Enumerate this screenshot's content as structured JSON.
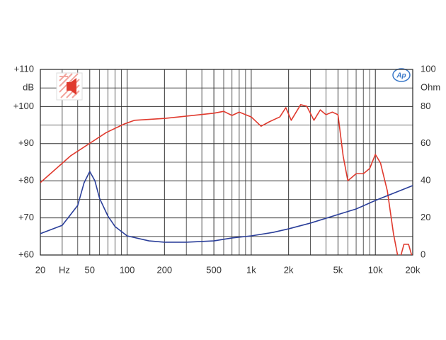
{
  "chart_data": {
    "type": "line",
    "badge": "Ap",
    "xlabel": "Hz",
    "ylabel": "dB",
    "y2label": "Ohm",
    "xscale": "log",
    "xlim": [
      20,
      20000
    ],
    "xticks": [
      20,
      50,
      100,
      200,
      500,
      {
        "value": 1000,
        "label": "1k"
      },
      {
        "value": 2000,
        "label": "2k"
      },
      {
        "value": 5000,
        "label": "5k"
      },
      {
        "value": 10000,
        "label": "10k"
      },
      {
        "value": 20000,
        "label": "20k"
      }
    ],
    "xminor": [
      30,
      40,
      60,
      70,
      80,
      90,
      300,
      400,
      600,
      700,
      800,
      900,
      3000,
      4000,
      6000,
      7000,
      8000,
      9000
    ],
    "ylim": [
      60,
      110
    ],
    "yticks": [
      {
        "value": 60,
        "label": "+60"
      },
      {
        "value": 70,
        "label": "+70"
      },
      {
        "value": 80,
        "label": "+80"
      },
      {
        "value": 90,
        "label": "+90"
      },
      {
        "value": 100,
        "label": "+100"
      },
      {
        "value": 110,
        "label": "+110"
      }
    ],
    "yminor": [
      65,
      75,
      85,
      95,
      105
    ],
    "y2lim": [
      0,
      100
    ],
    "y2ticks": [
      0,
      20,
      40,
      60,
      80,
      100
    ],
    "grid": true,
    "series": [
      {
        "color": "#e03a2e",
        "x": [
          20,
          35,
          68,
          95,
          115,
          200,
          500,
          600,
          700,
          800,
          1000,
          1200,
          1400,
          1700,
          1900,
          2100,
          2500,
          2800,
          3200,
          3600,
          4000,
          4500,
          5000,
          5500,
          6000,
          7000,
          8000,
          9000,
          10000,
          11000,
          12500,
          14000,
          15500,
          17000,
          18500,
          20000
        ],
        "values": [
          79.5,
          86.7,
          93,
          95.3,
          96.3,
          96.8,
          98.2,
          98.7,
          97.6,
          98.5,
          97.2,
          94.7,
          95.9,
          97.2,
          99.7,
          96.3,
          100.5,
          100.1,
          96.3,
          99.1,
          97.8,
          98.5,
          97.8,
          86.7,
          80,
          81.9,
          81.9,
          83.3,
          87.1,
          84.8,
          77.2,
          65.7,
          58,
          62.9,
          62.9,
          59
        ]
      },
      {
        "color": "#2b3f9a",
        "axis": "y2",
        "x": [
          20,
          30,
          40,
          45,
          50,
          55,
          60,
          70,
          80,
          100,
          150,
          200,
          300,
          500,
          700,
          1000,
          1500,
          2000,
          3000,
          5000,
          7000,
          10000,
          20000
        ],
        "values": [
          11.5,
          16,
          26.7,
          38.9,
          45,
          40,
          30.5,
          21,
          15.3,
          10.3,
          7.6,
          6.9,
          6.9,
          7.6,
          9.2,
          10.3,
          12.2,
          14.1,
          17.2,
          21.8,
          24.8,
          29.4,
          37.4
        ]
      }
    ]
  }
}
